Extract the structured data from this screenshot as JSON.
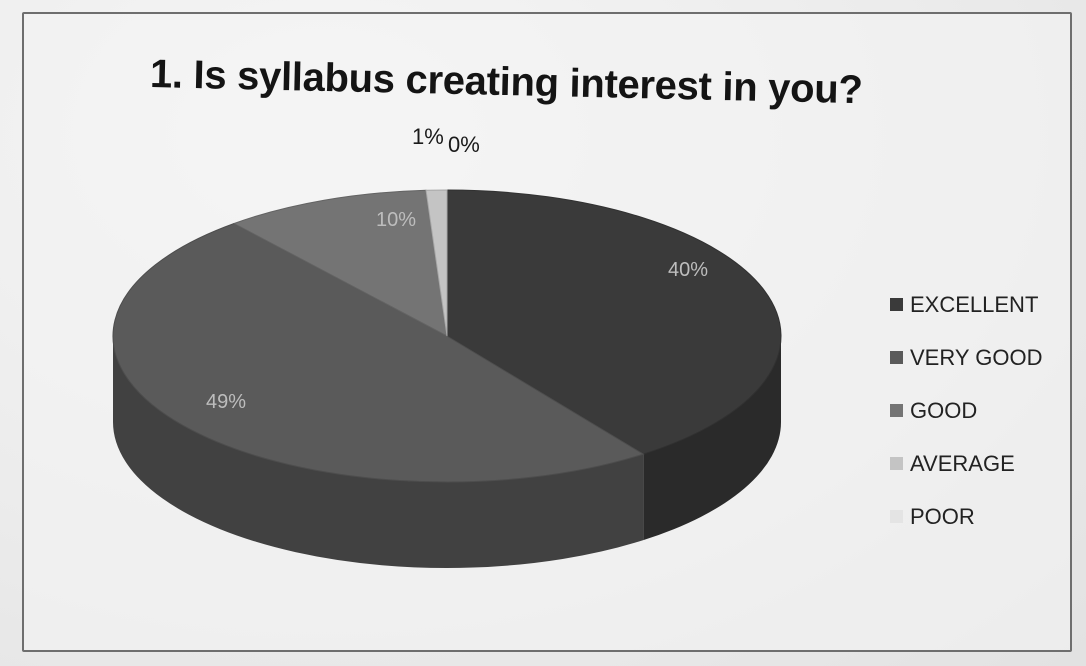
{
  "chart_data": {
    "type": "pie",
    "title": "1. Is syllabus creating interest in you?",
    "categories": [
      "EXCELLENT",
      "VERY GOOD",
      "GOOD",
      "AVERAGE",
      "POOR"
    ],
    "values": [
      40,
      49,
      10,
      1,
      0
    ],
    "data_labels": [
      "40%",
      "49%",
      "10%",
      "1%",
      "0%"
    ],
    "colors": [
      "#3a3a3a",
      "#5a5a5a",
      "#747474",
      "#c4c4c4",
      "#e4e4e4"
    ],
    "legend_position": "right",
    "style": "3d"
  }
}
